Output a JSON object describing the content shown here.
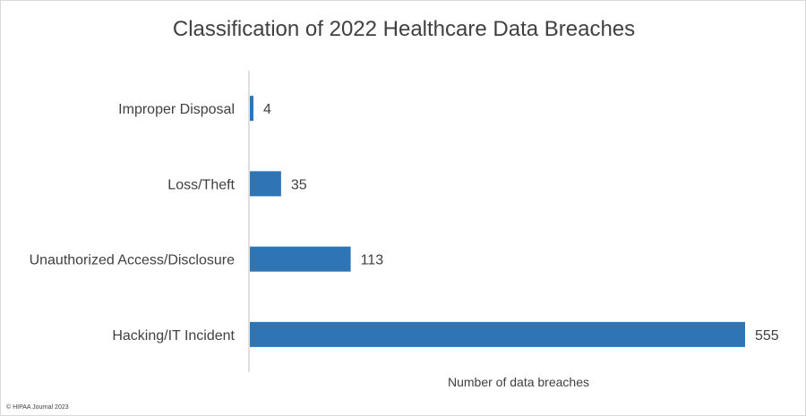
{
  "chart_data": {
    "type": "bar",
    "orientation": "horizontal",
    "title": "Classification of 2022 Healthcare Data Breaches",
    "xlabel": "Number of data breaches",
    "ylabel": "",
    "categories": [
      "Improper Disposal",
      "Loss/Theft",
      "Unauthorized Access/Disclosure",
      "Hacking/IT Incident"
    ],
    "values": [
      4,
      35,
      113,
      555
    ],
    "xlim": [
      0,
      555
    ],
    "grid": false,
    "bar_color": "#2e75b6"
  },
  "footer": {
    "copyright": "© HIPAA Journal 2023"
  }
}
